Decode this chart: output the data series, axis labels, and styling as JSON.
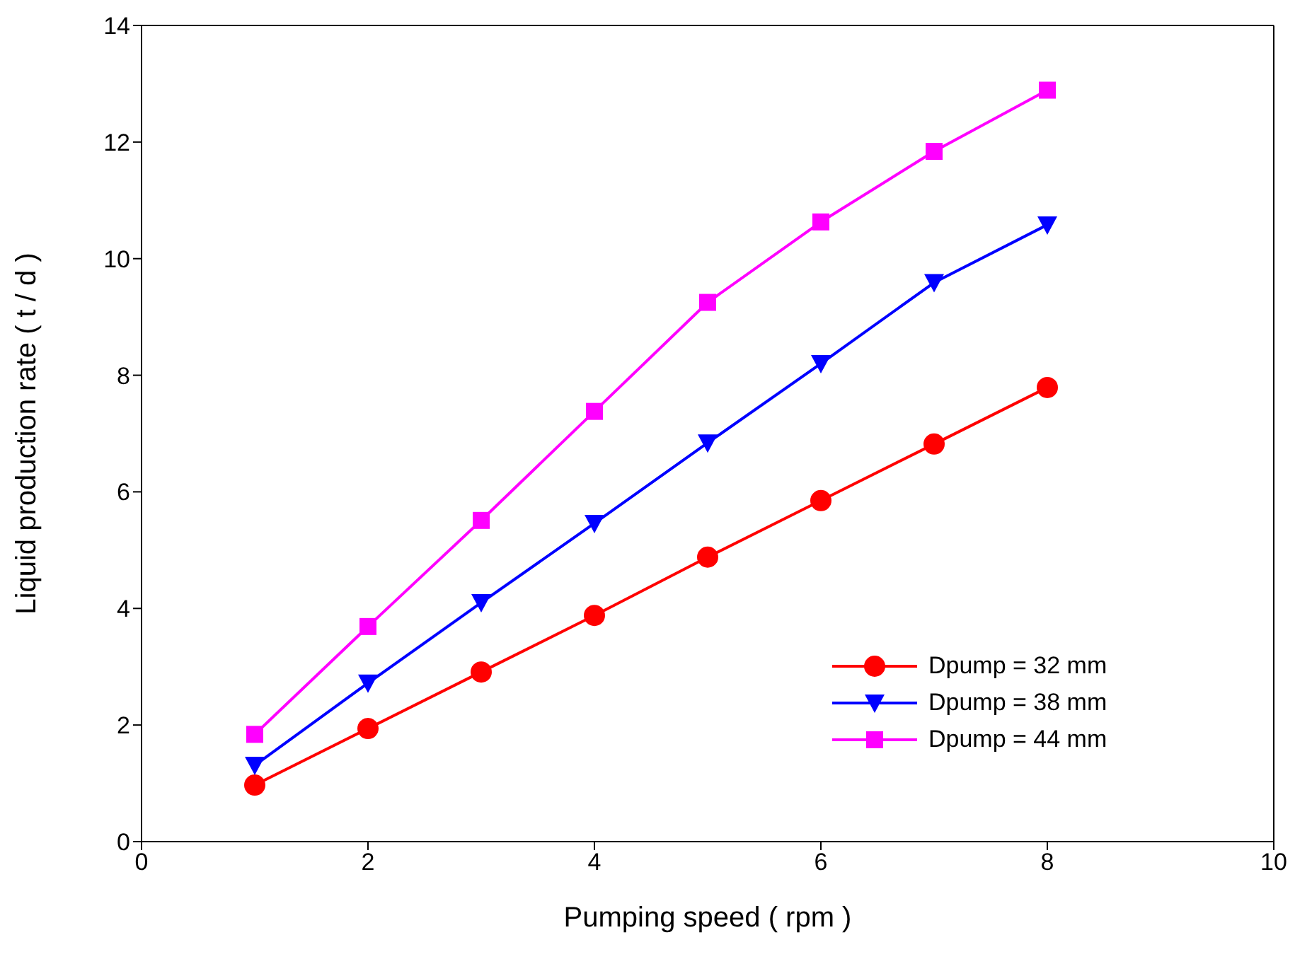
{
  "chart_data": {
    "type": "line",
    "xlabel": "Pumping speed ( rpm )",
    "ylabel": "Liquid production rate ( t / d )",
    "x": [
      1,
      2,
      3,
      4,
      5,
      6,
      7,
      8
    ],
    "xlim": [
      0,
      10
    ],
    "xticks": [
      0,
      2,
      4,
      6,
      8,
      10
    ],
    "ylim": [
      0,
      14
    ],
    "yticks": [
      0,
      2,
      4,
      6,
      8,
      10,
      12,
      14
    ],
    "grid": false,
    "legend": "bottom right",
    "line_style": "solid",
    "series": [
      {
        "name": "Dpump = 32 mm",
        "color": "#ff0000",
        "marker": "circle",
        "values": [
          0.97,
          1.94,
          2.91,
          3.88,
          4.88,
          5.85,
          6.82,
          7.79
        ]
      },
      {
        "name": "Dpump = 38 mm",
        "color": "#0000ff",
        "marker": "triangle",
        "values": [
          1.31,
          2.72,
          4.1,
          5.46,
          6.84,
          8.2,
          9.59,
          10.58
        ]
      },
      {
        "name": "Dpump = 44 mm",
        "color": "#ff00ff",
        "marker": "square",
        "values": [
          1.84,
          3.69,
          5.51,
          7.38,
          9.25,
          10.63,
          11.84,
          12.89
        ]
      }
    ]
  }
}
